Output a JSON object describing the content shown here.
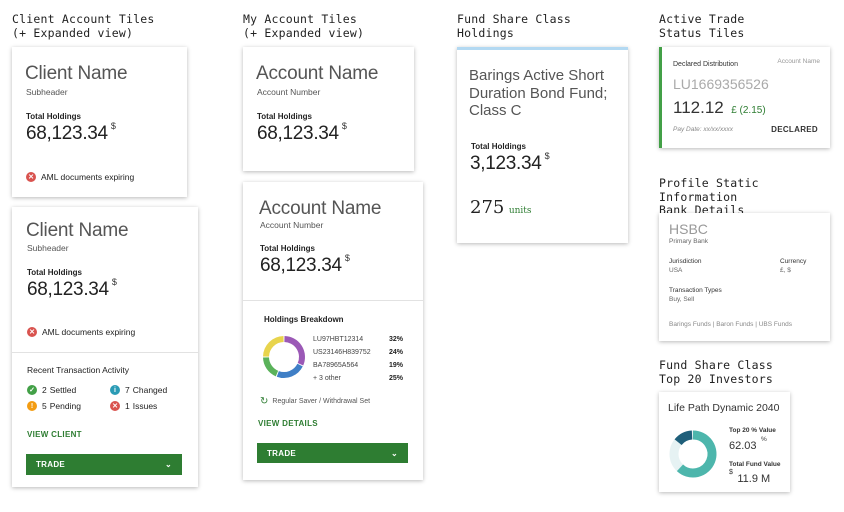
{
  "headings": {
    "client_tiles": [
      "Client Account Tiles",
      "(+ Expanded view)"
    ],
    "account_tiles": [
      "My Account Tiles",
      "(+ Expanded view)"
    ],
    "fund_holdings": [
      "Fund Share Class",
      "Holdings"
    ],
    "active_trade": [
      "Active Trade",
      "Status Tiles"
    ],
    "profile_static": [
      "Profile Static Information",
      "Bank Details"
    ],
    "top_investors": [
      "Fund Share Class",
      "Top 20 Investors"
    ]
  },
  "client_card_1": {
    "name": "Client Name",
    "subheader": "Subheader",
    "total_label": "Total Holdings",
    "total_value": "68,123.34",
    "currency": "$",
    "alert": "AML documents expiring"
  },
  "client_card_2": {
    "name": "Client Name",
    "subheader": "Subheader",
    "total_label": "Total Holdings",
    "total_value": "68,123.34",
    "currency": "$",
    "alert": "AML documents expiring",
    "activity_title": "Recent Transaction Activity",
    "activity": {
      "settled_count": "2",
      "settled_label": "Settled",
      "pending_count": "5",
      "pending_label": "Pending",
      "changed_count": "7",
      "changed_label": "Changed",
      "issues_count": "1",
      "issues_label": "Issues"
    },
    "view_link": "VIEW CLIENT",
    "trade_label": "TRADE"
  },
  "account_card_1": {
    "name": "Account Name",
    "number_label": "Account Number",
    "total_label": "Total Holdings",
    "total_value": "68,123.34",
    "currency": "$"
  },
  "account_card_2": {
    "name": "Account Name",
    "number_label": "Account Number",
    "total_label": "Total Holdings",
    "total_value": "68,123.34",
    "currency": "$",
    "breakdown_title": "Holdings Breakdown",
    "breakdown": [
      {
        "isin": "LU97HBT12314",
        "pct": "32%",
        "value": 32,
        "color": "#9b59b6"
      },
      {
        "isin": "US23146H839752",
        "pct": "24%",
        "value": 24,
        "color": "#3f7fc6"
      },
      {
        "isin": "BA78965A564",
        "pct": "19%",
        "value": 19,
        "color": "#5ab25a"
      },
      {
        "isin": "+ 3 other",
        "pct": "25%",
        "value": 25,
        "color": "#e8d44d"
      }
    ],
    "regular_saver": "Regular Saver / Withdrawal Set",
    "view_link": "VIEW DETAILS",
    "trade_label": "TRADE"
  },
  "fund_card": {
    "name": "Barings Active Short Duration Bond Fund; Class C",
    "total_label": "Total Holdings",
    "total_value": "3,123.34",
    "currency": "$",
    "units_value": "275",
    "units_label": "units",
    "accent": "#b3d9f2"
  },
  "trade_card": {
    "type_label": "Declared Distribution",
    "account_name": "Account Name",
    "isin": "LU1669356526",
    "amount": "112.12",
    "change": "£ (2.15)",
    "pay_date": "Pay Date: xx/xx/xxxx",
    "status": "DECLARED",
    "accent": "#43a047"
  },
  "bank_card": {
    "bank_name": "HSBC",
    "bank_sub": "Primary Bank",
    "jurisdiction_label": "Jurisdiction",
    "jurisdiction_value": "USA",
    "currency_label": "Currency",
    "currency_value": "£, $",
    "types_label": "Transaction Types",
    "types_value": "Buy, Sell",
    "funds": "Barings Funds | Baron Funds | UBS Funds"
  },
  "investor_card": {
    "name": "Life Path Dynamic 2040",
    "top20_label": "Top 20 % Value",
    "top20_value": "62.03",
    "top20_unit": "%",
    "total_label": "Total Fund Value",
    "total_currency": "$",
    "total_value": "11.9 M",
    "donut_fraction": 0.6203
  }
}
